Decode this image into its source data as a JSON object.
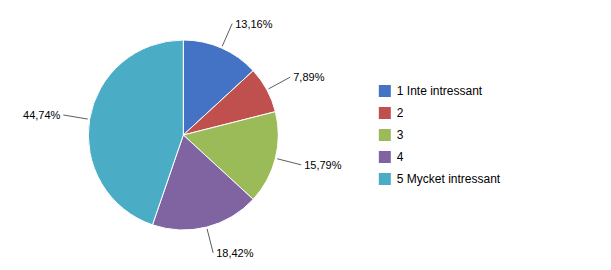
{
  "chart_data": {
    "type": "pie",
    "categories": [
      "1 Inte intressant",
      "2",
      "3",
      "4",
      "5 Mycket intressant"
    ],
    "values": [
      13.16,
      7.89,
      15.79,
      18.42,
      44.74
    ],
    "value_labels": [
      "13,16%",
      "7,89%",
      "15,79%",
      "18,42%",
      "44,74%"
    ],
    "colors": [
      "#4472C4",
      "#C0504D",
      "#9BBB59",
      "#8064A2",
      "#4BACC6"
    ],
    "data_labels": true,
    "legend": "right"
  }
}
